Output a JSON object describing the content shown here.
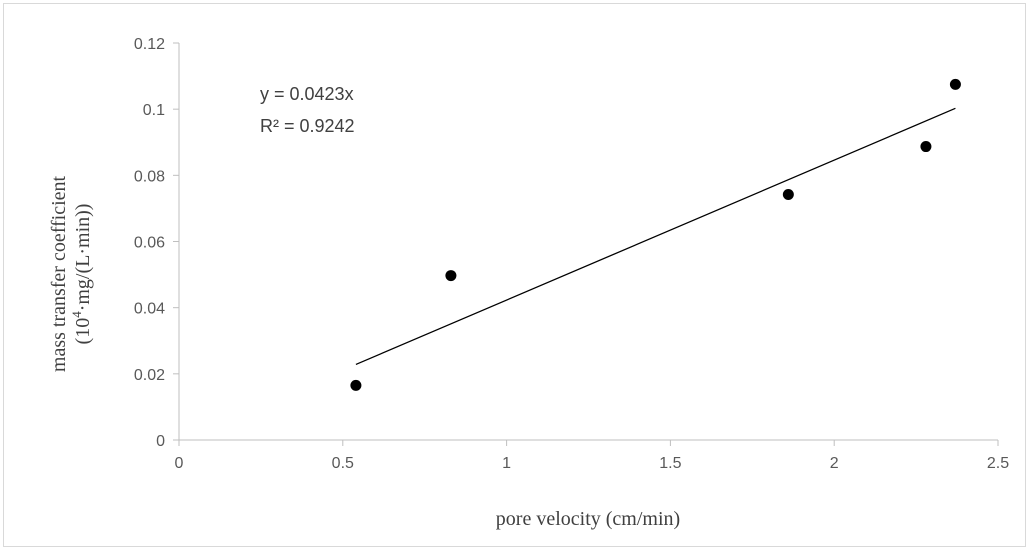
{
  "chart_data": {
    "type": "scatter",
    "xlabel": "pore velocity (cm/min)",
    "ylabel_line1": "mass transfer coefficient",
    "ylabel_line2_pre": "(10",
    "ylabel_line2_sup": "4",
    "ylabel_line2_post": "·mg/(L·min))",
    "xlim": [
      0,
      2.5
    ],
    "ylim": [
      0,
      0.12
    ],
    "x_ticks": [
      "0",
      "0.5",
      "1",
      "1.5",
      "2",
      "2.5"
    ],
    "y_ticks": [
      "0",
      "0.02",
      "0.04",
      "0.06",
      "0.08",
      "0.1",
      "0.12"
    ],
    "grid": false,
    "points": [
      {
        "x": 0.54,
        "y": 0.0165
      },
      {
        "x": 0.83,
        "y": 0.0497
      },
      {
        "x": 1.86,
        "y": 0.0742
      },
      {
        "x": 2.28,
        "y": 0.0887
      },
      {
        "x": 2.37,
        "y": 0.1075
      }
    ],
    "trendline": {
      "slope": 0.0423,
      "x_range": [
        0.54,
        2.37
      ],
      "equation": "y = 0.0423x",
      "r_squared": "R² = 0.9242"
    },
    "colors": {
      "marker": "#000000",
      "line": "#000000",
      "axis": "#bfbfbf"
    }
  }
}
